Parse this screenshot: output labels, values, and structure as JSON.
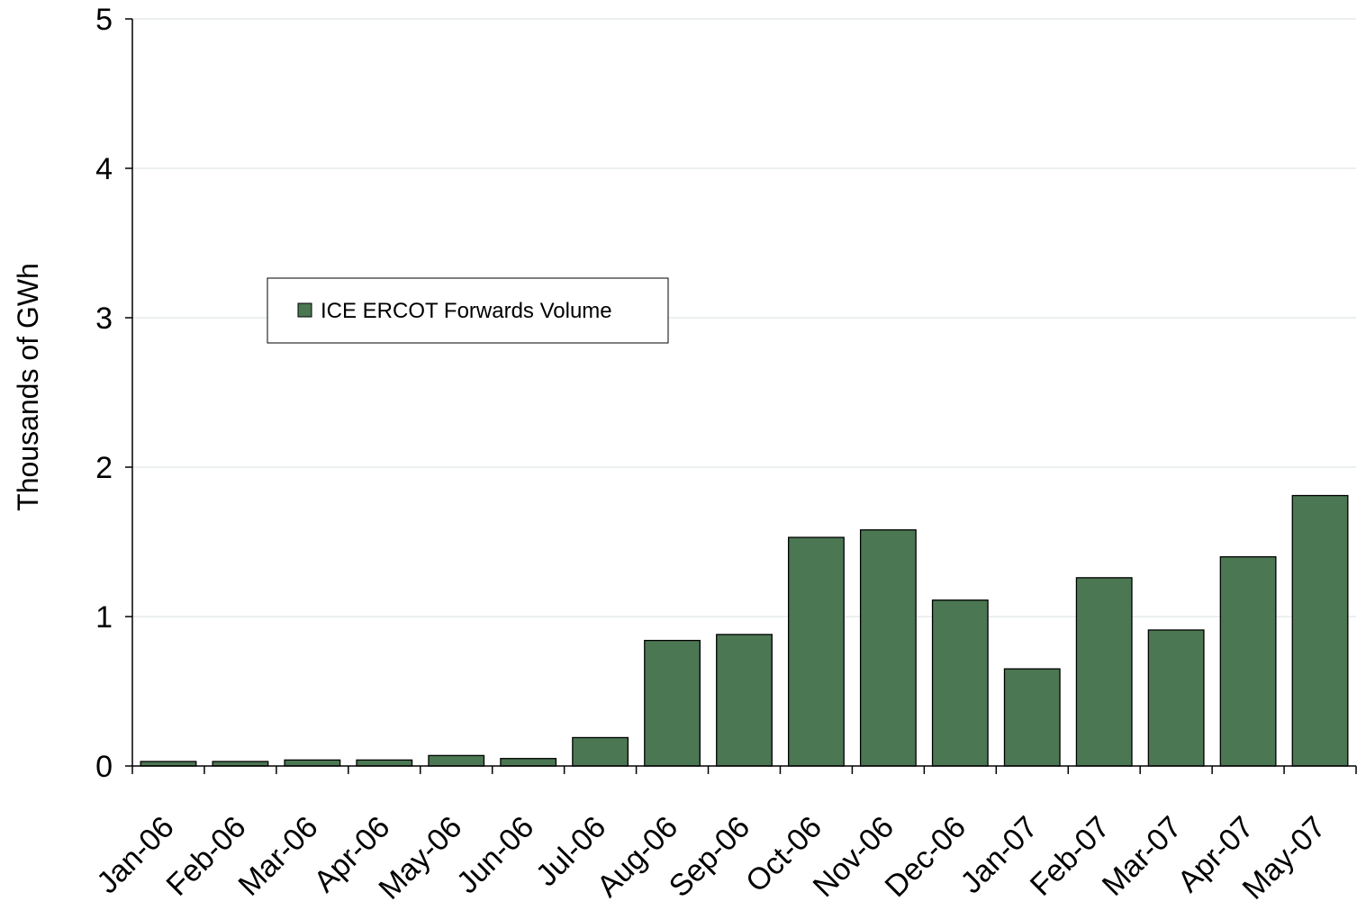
{
  "chart_data": {
    "type": "bar",
    "categories": [
      "Jan-06",
      "Feb-06",
      "Mar-06",
      "Apr-06",
      "May-06",
      "Jun-06",
      "Jul-06",
      "Aug-06",
      "Sep-06",
      "Oct-06",
      "Nov-06",
      "Dec-06",
      "Jan-07",
      "Feb-07",
      "Mar-07",
      "Apr-07",
      "May-07"
    ],
    "series": [
      {
        "name": "ICE ERCOT Forwards Volume",
        "values": [
          0.03,
          0.03,
          0.04,
          0.04,
          0.07,
          0.05,
          0.19,
          0.84,
          0.88,
          1.53,
          1.58,
          1.11,
          0.65,
          1.26,
          0.91,
          1.4,
          1.81
        ],
        "color": "#4b7752"
      }
    ],
    "ylabel": "Thousands of GWh",
    "ylim": [
      0,
      5
    ],
    "yticks": [
      0,
      1,
      2,
      3,
      4,
      5
    ],
    "grid": true,
    "gridline_color": "#dfe8e4",
    "legend_position": "upper-left"
  }
}
